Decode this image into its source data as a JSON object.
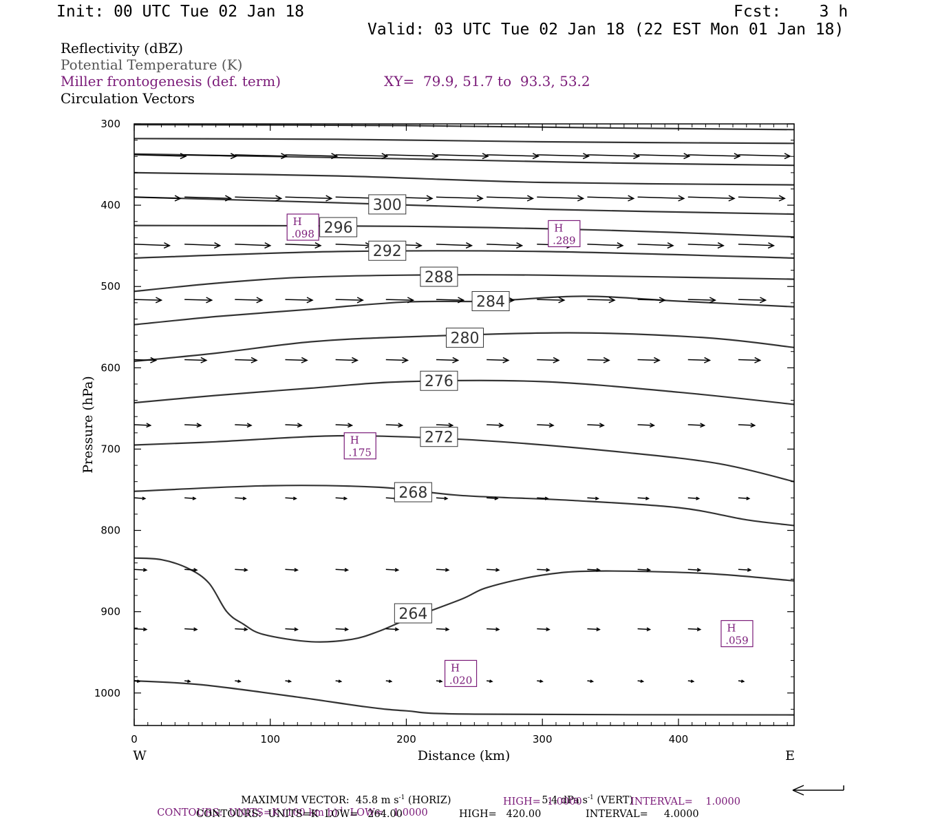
{
  "header": {
    "init": "Init: 00 UTC Tue 02 Jan 18",
    "fcst": "Fcst:    3 h",
    "valid": "Valid: 03 UTC Tue 02 Jan 18 (22 EST Mon 01 Jan 18)"
  },
  "legend": {
    "line1": "Reflectivity (dBZ)",
    "line2": "Potential Temperature (K)",
    "line3": "Miller frontogenesis (def. term)",
    "xy": "XY=  79.9, 51.7 to  93.3, 53.2",
    "line4": "Circulation Vectors"
  },
  "colors": {
    "purple": "#7a1a78",
    "gray_text": "#555555",
    "contour": "#333333",
    "axis": "#000000"
  },
  "footer": {
    "max_vector": "MAXIMUM VECTOR:  45.8 m s",
    "horiz": " (HORIZ)",
    "vert_val": "5.4 dPa s",
    "vert": " (VERT)",
    "frontocontours_a": "CONTOURS:  UNITS=K (100 km h)",
    "frontocontours_b": "  LOW=   1.0000",
    "fronto_high": "HIGH=  1.0000",
    "fronto_int": "INTERVAL=    1.0000",
    "theta_contours": "CONTOURS:  UNITS=K  LOW=   264.00",
    "theta_high": "HIGH=   420.00",
    "theta_int": "INTERVAL=     4.0000",
    "sup": "-1"
  },
  "chart_data": {
    "type": "line",
    "title": "",
    "xlabel": "Distance (km)",
    "ylabel": "Pressure (hPa)",
    "xlim": [
      0,
      485
    ],
    "ylim": [
      1040,
      300
    ],
    "x_ticks": [
      "0",
      "100",
      "200",
      "300",
      "400"
    ],
    "y_ticks": [
      "300",
      "400",
      "500",
      "600",
      "700",
      "800",
      "900",
      "1000"
    ],
    "x_end_labels": {
      "left": "W",
      "right": "E"
    },
    "isentropes": [
      {
        "label": "",
        "points": [
          [
            0,
            301
          ],
          [
            200,
            302
          ],
          [
            350,
            305
          ],
          [
            485,
            307
          ]
        ]
      },
      {
        "label": "",
        "points": [
          [
            0,
            318
          ],
          [
            150,
            319
          ],
          [
            300,
            322
          ],
          [
            485,
            324
          ]
        ]
      },
      {
        "label": "",
        "points": [
          [
            0,
            337
          ],
          [
            200,
            343
          ],
          [
            350,
            348
          ],
          [
            485,
            351
          ]
        ]
      },
      {
        "label": "",
        "points": [
          [
            0,
            360
          ],
          [
            150,
            364
          ],
          [
            300,
            372
          ],
          [
            485,
            375
          ]
        ]
      },
      {
        "label": "300",
        "label_at": [
          186,
          399
        ],
        "points": [
          [
            0,
            390
          ],
          [
            150,
            397
          ],
          [
            300,
            405
          ],
          [
            485,
            411
          ]
        ]
      },
      {
        "label": "296",
        "label_at": [
          150,
          427
        ],
        "points": [
          [
            0,
            425
          ],
          [
            200,
            426
          ],
          [
            350,
            431
          ],
          [
            485,
            439
          ]
        ]
      },
      {
        "label": "292",
        "label_at": [
          186,
          456
        ],
        "points": [
          [
            0,
            465
          ],
          [
            150,
            457
          ],
          [
            300,
            457
          ],
          [
            485,
            465
          ]
        ]
      },
      {
        "label": "288",
        "label_at": [
          224,
          488
        ],
        "points": [
          [
            0,
            506
          ],
          [
            60,
            496
          ],
          [
            120,
            489
          ],
          [
            200,
            486
          ],
          [
            300,
            486
          ],
          [
            485,
            491
          ]
        ]
      },
      {
        "label": "284",
        "label_at": [
          262,
          518
        ],
        "points": [
          [
            0,
            547
          ],
          [
            60,
            537
          ],
          [
            130,
            528
          ],
          [
            200,
            519
          ],
          [
            260,
            518
          ],
          [
            330,
            512
          ],
          [
            400,
            518
          ],
          [
            485,
            525
          ]
        ]
      },
      {
        "label": "280",
        "label_at": [
          243,
          563
        ],
        "points": [
          [
            0,
            592
          ],
          [
            60,
            582
          ],
          [
            130,
            568
          ],
          [
            200,
            562
          ],
          [
            320,
            557
          ],
          [
            420,
            563
          ],
          [
            485,
            575
          ]
        ]
      },
      {
        "label": "276",
        "label_at": [
          224,
          616
        ],
        "points": [
          [
            0,
            643
          ],
          [
            60,
            634
          ],
          [
            130,
            625
          ],
          [
            200,
            617
          ],
          [
            300,
            617
          ],
          [
            400,
            630
          ],
          [
            485,
            645
          ]
        ]
      },
      {
        "label": "272",
        "label_at": [
          224,
          685
        ],
        "points": [
          [
            0,
            695
          ],
          [
            60,
            691
          ],
          [
            140,
            684
          ],
          [
            200,
            685
          ],
          [
            270,
            691
          ],
          [
            360,
            704
          ],
          [
            430,
            718
          ],
          [
            485,
            740
          ]
        ]
      },
      {
        "label": "268",
        "label_at": [
          205,
          753
        ],
        "points": [
          [
            0,
            752
          ],
          [
            100,
            745
          ],
          [
            180,
            747
          ],
          [
            240,
            757
          ],
          [
            320,
            763
          ],
          [
            400,
            772
          ],
          [
            450,
            787
          ],
          [
            485,
            794
          ]
        ]
      },
      {
        "label": "264",
        "label_at": [
          205,
          902
        ],
        "points": [
          [
            0,
            834
          ],
          [
            20,
            836
          ],
          [
            40,
            847
          ],
          [
            55,
            865
          ],
          [
            68,
            900
          ],
          [
            80,
            915
          ],
          [
            95,
            928
          ],
          [
            130,
            937
          ],
          [
            160,
            934
          ],
          [
            180,
            924
          ],
          [
            200,
            910
          ],
          [
            240,
            885
          ],
          [
            260,
            870
          ],
          [
            300,
            855
          ],
          [
            340,
            850
          ],
          [
            420,
            853
          ],
          [
            485,
            862
          ]
        ]
      },
      {
        "label": "",
        "points": [
          [
            0,
            985
          ],
          [
            50,
            990
          ],
          [
            120,
            1005
          ],
          [
            170,
            1017
          ],
          [
            200,
            1022
          ],
          [
            250,
            1026
          ],
          [
            485,
            1027
          ]
        ]
      }
    ],
    "frontogenesis_highs": [
      {
        "label": "H",
        "value": ".098",
        "at": [
          124,
          427
        ]
      },
      {
        "label": "H",
        "value": ".289",
        "at": [
          316,
          435
        ]
      },
      {
        "label": "H",
        "value": ".175",
        "at": [
          166,
          696
        ]
      },
      {
        "label": "H",
        "value": ".020",
        "at": [
          240,
          976
        ]
      },
      {
        "label": "H",
        "value": ".059",
        "at": [
          443,
          927
        ]
      }
    ],
    "vector_rows": [
      {
        "p": 338,
        "xs": [
          0,
          37,
          74,
          111,
          148,
          185,
          222,
          259,
          296,
          333,
          370,
          407,
          444
        ],
        "u": 38,
        "w": 2
      },
      {
        "p": 390,
        "xs": [
          0,
          37,
          74,
          111,
          148,
          185,
          222,
          259,
          296,
          333,
          370,
          407,
          444
        ],
        "u": 34,
        "w": 2
      },
      {
        "p": 448,
        "xs": [
          0,
          37,
          74,
          111,
          148,
          185,
          222,
          259,
          296,
          333,
          370,
          407,
          444
        ],
        "u": 26,
        "w": 2
      },
      {
        "p": 516,
        "xs": [
          0,
          37,
          74,
          111,
          148,
          185,
          222,
          259,
          296,
          333,
          370,
          407,
          444
        ],
        "u": 20,
        "w": 1
      },
      {
        "p": 590,
        "xs": [
          0,
          37,
          74,
          111,
          148,
          185,
          222,
          259,
          296,
          333,
          370,
          407,
          444
        ],
        "u": 16,
        "w": 1
      },
      {
        "p": 670,
        "xs": [
          0,
          37,
          74,
          111,
          148,
          185,
          222,
          259,
          296,
          333,
          370,
          407,
          444
        ],
        "u": 12,
        "w": 1
      },
      {
        "p": 760,
        "xs": [
          0,
          37,
          74,
          111,
          148,
          185,
          222,
          259,
          296,
          333,
          370,
          407,
          444
        ],
        "u": 8,
        "w": 1
      },
      {
        "p": 848,
        "xs": [
          0,
          37,
          74,
          111,
          148,
          185,
          222,
          259,
          296,
          333,
          370,
          407,
          444
        ],
        "u": 9,
        "w": 1
      },
      {
        "p": 921,
        "xs": [
          0,
          37,
          74,
          111,
          148,
          185,
          222,
          259,
          296,
          333,
          370,
          407,
          444
        ],
        "u": 9,
        "w": 1
      },
      {
        "p": 985,
        "xs": [
          0,
          37,
          74,
          111,
          148,
          185,
          222,
          259,
          296,
          333,
          370,
          407,
          444
        ],
        "u": 4,
        "w": 1
      }
    ]
  }
}
